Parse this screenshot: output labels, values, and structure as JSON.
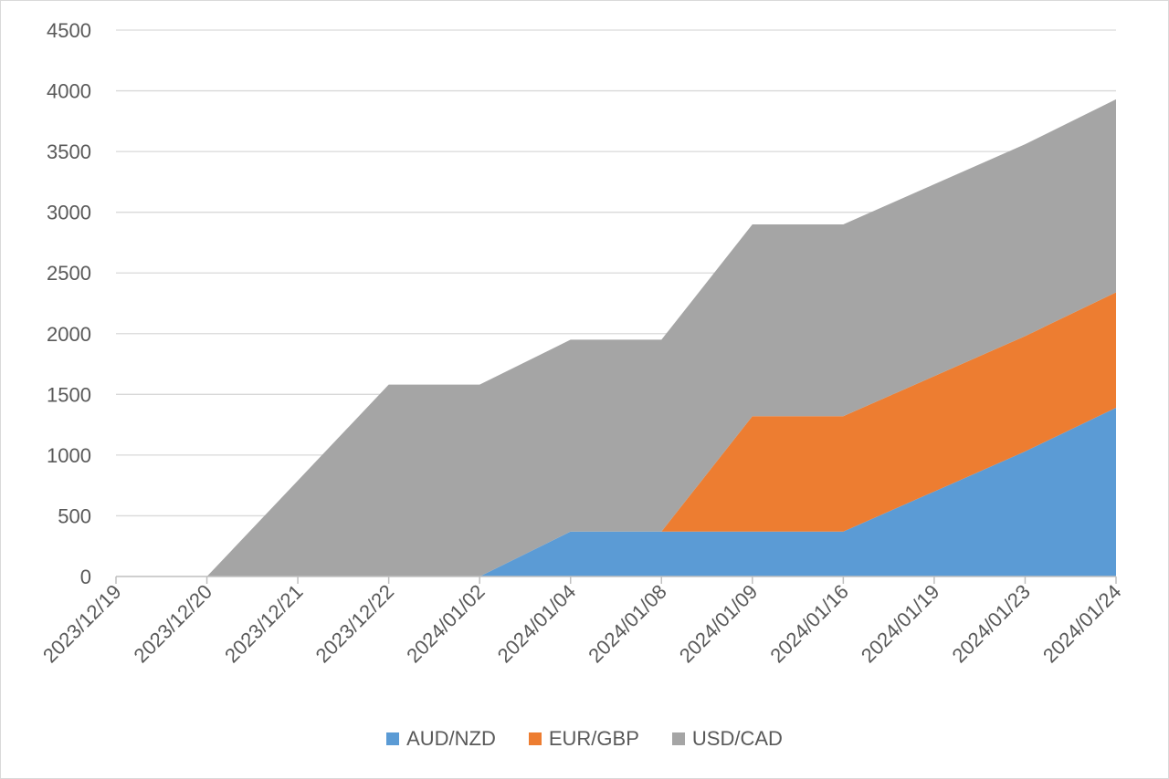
{
  "chart_data": {
    "type": "area",
    "stacked": true,
    "categories": [
      "2023/12/19",
      "2023/12/20",
      "2023/12/21",
      "2023/12/22",
      "2024/01/02",
      "2024/01/04",
      "2024/01/08",
      "2024/01/09",
      "2024/01/16",
      "2024/01/19",
      "2024/01/23",
      "2024/01/24"
    ],
    "series": [
      {
        "name": "AUD/NZD",
        "color": "#5b9bd5",
        "values": [
          0,
          0,
          0,
          0,
          0,
          370,
          370,
          370,
          370,
          700,
          1030,
          1390
        ]
      },
      {
        "name": "EUR/GBP",
        "color": "#ed7d31",
        "values": [
          0,
          0,
          0,
          0,
          0,
          0,
          0,
          950,
          950,
          950,
          950,
          950
        ]
      },
      {
        "name": "USD/CAD",
        "color": "#a5a5a5",
        "values": [
          0,
          0,
          790,
          1580,
          1580,
          1580,
          1580,
          1580,
          1580,
          1580,
          1580,
          1590
        ]
      }
    ],
    "yticks": [
      "0",
      "500",
      "1000",
      "1500",
      "2000",
      "2500",
      "3000",
      "3500",
      "4000",
      "4500"
    ],
    "ylim": [
      0,
      4500
    ],
    "grid": true,
    "legend_position": "bottom"
  }
}
